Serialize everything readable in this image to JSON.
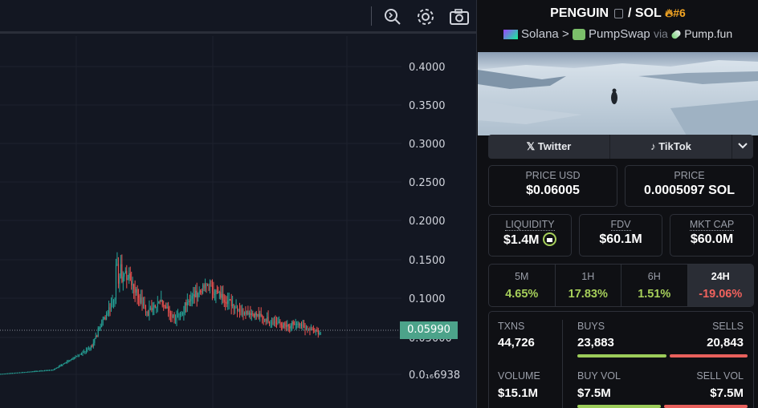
{
  "chart": {
    "y_axis_labels": [
      "0.4000",
      "0.3500",
      "0.3000",
      "0.2500",
      "0.2000",
      "0.1500",
      "0.1000",
      "0.05000",
      "0.0₁₆6938"
    ],
    "current_price_label": "0.05990",
    "colors": {
      "up": "#26a69a",
      "down": "#ef5350",
      "background": "#131722"
    },
    "toolbar_icons": [
      "indicators-icon",
      "settings-icon",
      "camera-icon"
    ]
  },
  "pair": {
    "base": "PENGUIN",
    "quote": "SOL",
    "rank": "#6",
    "chain": "Solana",
    "dex": "PumpSwap",
    "via_label": "via",
    "launchpad": "Pump.fun"
  },
  "socials": {
    "twitter": "Twitter",
    "tiktok": "TikTok"
  },
  "price": {
    "usd_label": "PRICE USD",
    "usd_value": "$0.06005",
    "native_label": "PRICE",
    "native_value": "0.0005097 SOL"
  },
  "metrics": {
    "liquidity_label": "LIQUIDITY",
    "liquidity_value": "$1.4M",
    "fdv_label": "FDV",
    "fdv_value": "$60.1M",
    "mktcap_label": "MKT CAP",
    "mktcap_value": "$60.0M"
  },
  "timeframes": [
    {
      "label": "5M",
      "change": "4.65%",
      "positive": true
    },
    {
      "label": "1H",
      "change": "17.83%",
      "positive": true
    },
    {
      "label": "6H",
      "change": "1.51%",
      "positive": true
    },
    {
      "label": "24H",
      "change": "-19.06%",
      "positive": false
    }
  ],
  "stats": {
    "txns_label": "TXNS",
    "txns_value": "44,726",
    "buys_label": "BUYS",
    "buys_value": "23,883",
    "sells_label": "SELLS",
    "sells_value": "20,843",
    "volume_label": "VOLUME",
    "volume_value": "$15.1M",
    "buyvol_label": "BUY VOL",
    "buyvol_value": "$7.5M",
    "sellvol_label": "SELL VOL",
    "sellvol_value": "$7.5M",
    "buy_ratio": 0.534,
    "buyvol_ratio": 0.5
  },
  "colors": {
    "positive": "#a6cf5a",
    "negative": "#f0625d",
    "buy_bar": "#9ccc5a",
    "sell_bar": "#e8605c",
    "rank": "#f5a623"
  }
}
